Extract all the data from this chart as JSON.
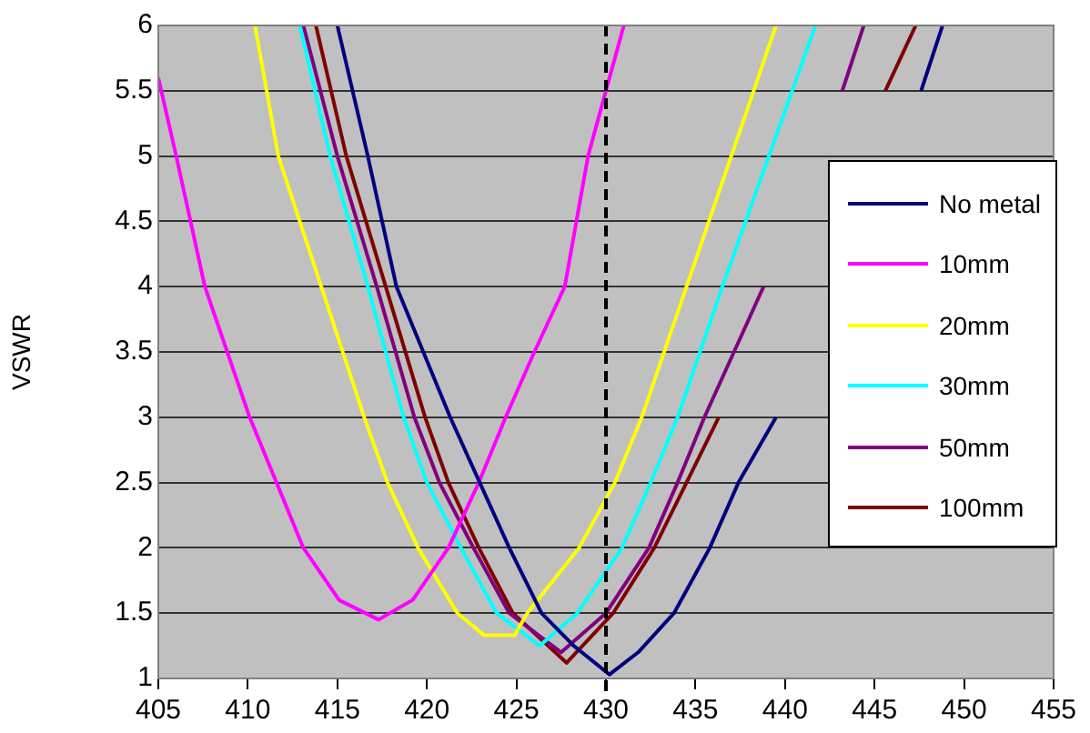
{
  "chart_data": {
    "type": "line",
    "ylabel": "VSWR",
    "xlim": [
      405,
      455
    ],
    "xticks": [
      405,
      410,
      415,
      420,
      425,
      430,
      435,
      440,
      445,
      450,
      455
    ],
    "ylim": [
      1,
      6
    ],
    "yticks": [
      1,
      1.5,
      2,
      2.5,
      3,
      3.5,
      4,
      4.5,
      5,
      5.5,
      6
    ],
    "grid": "y",
    "legend": "right",
    "marker": "none",
    "line_style": "solid",
    "ref_lines": [
      {
        "axis": "x",
        "value": 430,
        "color": "#000000",
        "line_style": "dashed"
      }
    ],
    "series": [
      {
        "name": "No metal",
        "color": "#000080",
        "x": [
          415,
          416.7,
          418.3,
          421.3,
          424.6,
          426.4,
          428.2,
          430.2,
          431.8,
          433.8,
          435.8,
          437.4,
          439.5,
          442.3,
          446.3,
          447.6,
          448.8
        ],
        "values": [
          6,
          5,
          4,
          3,
          2,
          1.5,
          1.25,
          1.03,
          1.2,
          1.5,
          2,
          2.5,
          3,
          null,
          null,
          5.5,
          6
        ]
      },
      {
        "name": "10mm",
        "color": "#ff00ff",
        "x": [
          405,
          406,
          407.6,
          410.1,
          411.6,
          413.1,
          415.1,
          417.3,
          419.2,
          421.2,
          422.9,
          424.4,
          426,
          427.7,
          429,
          430,
          431
        ],
        "values": [
          5.6,
          5,
          4,
          3,
          2.5,
          2,
          1.6,
          1.45,
          1.6,
          2,
          2.5,
          3,
          3.5,
          4,
          5,
          5.5,
          6
        ]
      },
      {
        "name": "20mm",
        "color": "#ffff00",
        "x": [
          410.4,
          411.7,
          414.1,
          416.5,
          417.8,
          419.5,
          421.7,
          423.2,
          424.9,
          425.6,
          428.5,
          430.5,
          432,
          434.5,
          437,
          439.5
        ],
        "values": [
          6,
          5,
          4,
          3,
          2.5,
          2,
          1.5,
          1.33,
          1.33,
          1.5,
          2,
          2.5,
          3,
          4,
          5,
          6
        ]
      },
      {
        "name": "30mm",
        "color": "#00ffff",
        "x": [
          412.9,
          414.6,
          416.7,
          418.7,
          420,
          421.9,
          423.9,
          426.3,
          428.4,
          430.9,
          432.5,
          434,
          436.5,
          439.1,
          441.7
        ],
        "values": [
          6,
          5,
          4,
          3,
          2.5,
          2,
          1.5,
          1.25,
          1.5,
          2,
          2.5,
          3,
          4,
          5,
          6
        ]
      },
      {
        "name": "50mm",
        "color": "#800080",
        "x": [
          413.1,
          415,
          417.2,
          419.3,
          420.7,
          422.6,
          424.6,
          427.5,
          430,
          432.4,
          434,
          435.5,
          438.8,
          441.9,
          443.2,
          444.4
        ],
        "values": [
          6,
          5,
          4,
          3,
          2.5,
          2,
          1.5,
          1.2,
          1.5,
          2,
          2.5,
          3,
          4,
          null,
          5.5,
          6
        ]
      },
      {
        "name": "100mm",
        "color": "#800000",
        "x": [
          413.8,
          415.5,
          417.7,
          419.9,
          421.2,
          422.9,
          424.8,
          427.8,
          430.4,
          432.7,
          434.5,
          436.3,
          440.2,
          443.9,
          445.6,
          447.3
        ],
        "values": [
          6,
          5,
          4,
          3,
          2.5,
          2,
          1.5,
          1.12,
          1.5,
          2,
          2.5,
          3,
          null,
          null,
          5.5,
          6
        ]
      }
    ]
  }
}
